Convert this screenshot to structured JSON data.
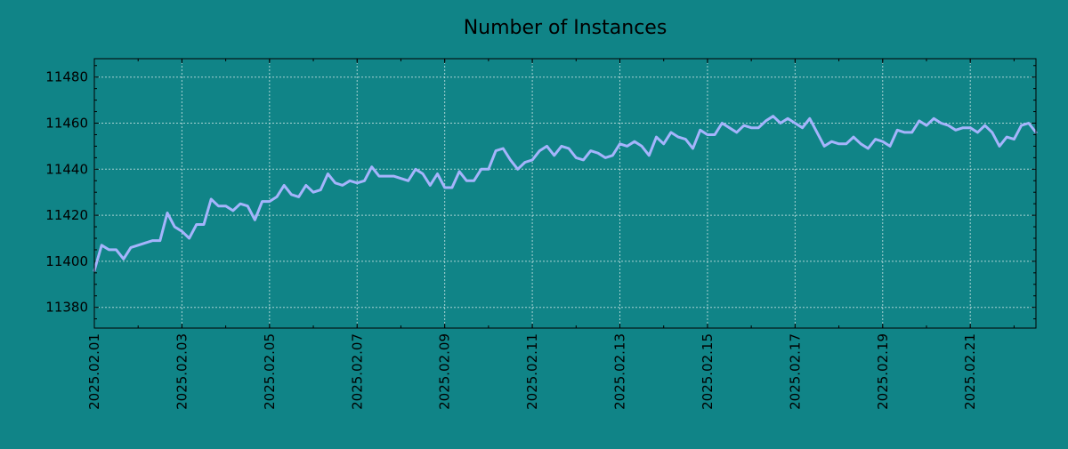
{
  "colors": {
    "background": "#108487",
    "line": "#a5b4fc",
    "grid": "#cfe6e6",
    "axis": "#000000"
  },
  "chart_data": {
    "type": "line",
    "title": "Number of Instances",
    "xlabel": "",
    "ylabel": "",
    "grid": true,
    "x_range": [
      "2025.02.01",
      "2025.02.22"
    ],
    "x_ticks": [
      "2025.02.01",
      "2025.02.03",
      "2025.02.05",
      "2025.02.07",
      "2025.02.09",
      "2025.02.11",
      "2025.02.13",
      "2025.02.15",
      "2025.02.17",
      "2025.02.19",
      "2025.02.21"
    ],
    "ylim": [
      11371,
      11488
    ],
    "y_ticks": [
      11380,
      11400,
      11420,
      11440,
      11460,
      11480
    ],
    "series": [
      {
        "x": [
          "2025.02.01 00:00",
          "2025.02.01 04:00",
          "2025.02.01 08:00",
          "2025.02.01 12:00",
          "2025.02.01 16:00",
          "2025.02.01 20:00",
          "2025.02.02 00:00",
          "2025.02.02 04:00",
          "2025.02.02 08:00",
          "2025.02.02 12:00",
          "2025.02.02 16:00",
          "2025.02.02 20:00",
          "2025.02.03 00:00",
          "2025.02.03 04:00",
          "2025.02.03 08:00",
          "2025.02.03 12:00",
          "2025.02.03 16:00",
          "2025.02.03 20:00",
          "2025.02.04 00:00",
          "2025.02.04 04:00",
          "2025.02.04 08:00",
          "2025.02.04 12:00",
          "2025.02.04 16:00",
          "2025.02.04 20:00",
          "2025.02.05 00:00",
          "2025.02.05 04:00",
          "2025.02.05 08:00",
          "2025.02.05 12:00",
          "2025.02.05 16:00",
          "2025.02.05 20:00",
          "2025.02.06 00:00",
          "2025.02.06 04:00",
          "2025.02.06 08:00",
          "2025.02.06 12:00",
          "2025.02.06 16:00",
          "2025.02.06 20:00",
          "2025.02.07 00:00",
          "2025.02.07 04:00",
          "2025.02.07 08:00",
          "2025.02.07 12:00",
          "2025.02.07 16:00",
          "2025.02.07 20:00",
          "2025.02.08 00:00",
          "2025.02.08 04:00",
          "2025.02.08 08:00",
          "2025.02.08 12:00",
          "2025.02.08 16:00",
          "2025.02.08 20:00",
          "2025.02.09 00:00",
          "2025.02.09 04:00",
          "2025.02.09 08:00",
          "2025.02.09 12:00",
          "2025.02.09 16:00",
          "2025.02.09 20:00",
          "2025.02.10 00:00",
          "2025.02.10 04:00",
          "2025.02.10 08:00",
          "2025.02.10 12:00",
          "2025.02.10 16:00",
          "2025.02.10 20:00",
          "2025.02.11 00:00",
          "2025.02.11 04:00",
          "2025.02.11 08:00",
          "2025.02.11 12:00",
          "2025.02.11 16:00",
          "2025.02.11 20:00",
          "2025.02.12 00:00",
          "2025.02.12 04:00",
          "2025.02.12 08:00",
          "2025.02.12 12:00",
          "2025.02.12 16:00",
          "2025.02.12 20:00",
          "2025.02.13 00:00",
          "2025.02.13 04:00",
          "2025.02.13 08:00",
          "2025.02.13 12:00",
          "2025.02.13 16:00",
          "2025.02.13 20:00",
          "2025.02.14 00:00",
          "2025.02.14 04:00",
          "2025.02.14 08:00",
          "2025.02.14 12:00",
          "2025.02.14 16:00",
          "2025.02.14 20:00",
          "2025.02.15 00:00",
          "2025.02.15 04:00",
          "2025.02.15 08:00",
          "2025.02.15 12:00",
          "2025.02.15 16:00",
          "2025.02.15 20:00",
          "2025.02.16 00:00",
          "2025.02.16 04:00",
          "2025.02.16 08:00",
          "2025.02.16 12:00",
          "2025.02.16 16:00",
          "2025.02.16 20:00",
          "2025.02.17 00:00",
          "2025.02.17 04:00",
          "2025.02.17 08:00",
          "2025.02.17 12:00",
          "2025.02.17 16:00",
          "2025.02.17 20:00",
          "2025.02.18 00:00",
          "2025.02.18 04:00",
          "2025.02.18 08:00",
          "2025.02.18 12:00",
          "2025.02.18 16:00",
          "2025.02.18 20:00",
          "2025.02.19 00:00",
          "2025.02.19 04:00",
          "2025.02.19 08:00",
          "2025.02.19 12:00",
          "2025.02.19 16:00",
          "2025.02.19 20:00",
          "2025.02.20 00:00",
          "2025.02.20 04:00",
          "2025.02.20 08:00",
          "2025.02.20 12:00",
          "2025.02.20 16:00",
          "2025.02.20 20:00",
          "2025.02.21 00:00",
          "2025.02.21 04:00",
          "2025.02.21 08:00",
          "2025.02.21 12:00",
          "2025.02.21 16:00",
          "2025.02.21 20:00",
          "2025.02.22 00:00",
          "2025.02.22 04:00",
          "2025.02.22 08:00",
          "2025.02.22 12:00"
        ],
        "values": [
          11396,
          11407,
          11405,
          11405,
          11401,
          11406,
          11407,
          11408,
          11409,
          11409,
          11421,
          11415,
          11413,
          11410,
          11416,
          11416,
          11427,
          11424,
          11424,
          11422,
          11425,
          11424,
          11418,
          11426,
          11426,
          11428,
          11433,
          11429,
          11428,
          11433,
          11430,
          11431,
          11438,
          11434,
          11433,
          11435,
          11434,
          11435,
          11441,
          11437,
          11437,
          11437,
          11436,
          11435,
          11440,
          11438,
          11433,
          11438,
          11432,
          11432,
          11439,
          11435,
          11435,
          11440,
          11440,
          11448,
          11449,
          11444,
          11440,
          11443,
          11444,
          11448,
          11450,
          11446,
          11450,
          11449,
          11445,
          11444,
          11448,
          11447,
          11445,
          11446,
          11451,
          11450,
          11452,
          11450,
          11446,
          11454,
          11451,
          11456,
          11454,
          11453,
          11449,
          11457,
          11455,
          11455,
          11460,
          11458,
          11456,
          11459,
          11458,
          11458,
          11461,
          11463,
          11460,
          11462,
          11460,
          11458,
          11462,
          11456,
          11450,
          11452,
          11451,
          11451,
          11454,
          11451,
          11449,
          11453,
          11452,
          11450,
          11457,
          11456,
          11456,
          11461,
          11459,
          11462,
          11460,
          11459,
          11457,
          11458,
          11458,
          11456,
          11459,
          11456,
          11450,
          11454,
          11453,
          11459,
          11460,
          11456
        ]
      }
    ]
  }
}
